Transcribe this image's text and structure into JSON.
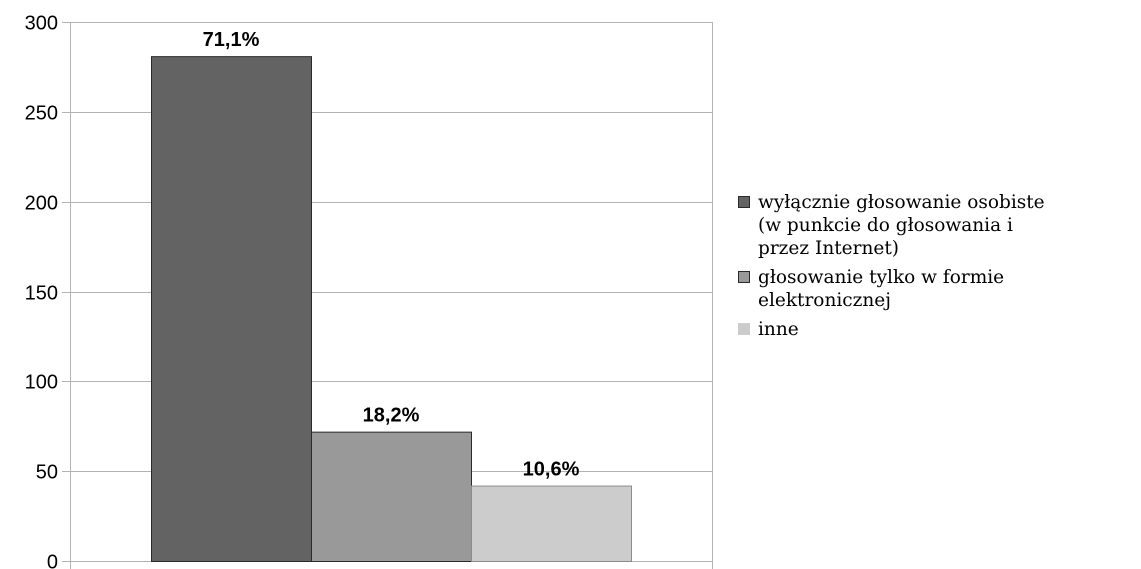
{
  "chart_data": {
    "type": "bar",
    "categories": [
      "wyłącznie głosowanie osobiste (w punkcie do głosowania i przez Internet)",
      "głosowanie tylko w formie elektronicznej",
      "inne"
    ],
    "series": [
      {
        "values": [
          281,
          72,
          42
        ],
        "data_labels": [
          "71,1%",
          "18,2%",
          "10,6%"
        ],
        "colors": [
          "#636363",
          "#999999",
          "#cccccc"
        ],
        "stroke": [
          "#2a2a2a",
          "#2a2a2a",
          "#8c8c8c"
        ]
      }
    ],
    "title": "",
    "xlabel": "",
    "ylabel": "",
    "ylim": [
      0,
      300
    ],
    "yticks": [
      "0",
      "50",
      "100",
      "150",
      "200",
      "250",
      "300"
    ],
    "grid": true,
    "legend_position": "right",
    "legend": [
      {
        "lines": [
          "wyłącznie głosowanie osobiste",
          "(w punkcie do głosowania i",
          "przez Internet)"
        ],
        "color": "#636363",
        "border": "#2a2a2a"
      },
      {
        "lines": [
          "głosowanie tylko w formie",
          "elektronicznej"
        ],
        "color": "#999999",
        "border": "#2a2a2a"
      },
      {
        "lines": [
          "inne"
        ],
        "color": "#cccccc",
        "border": "#cccccc"
      }
    ]
  }
}
